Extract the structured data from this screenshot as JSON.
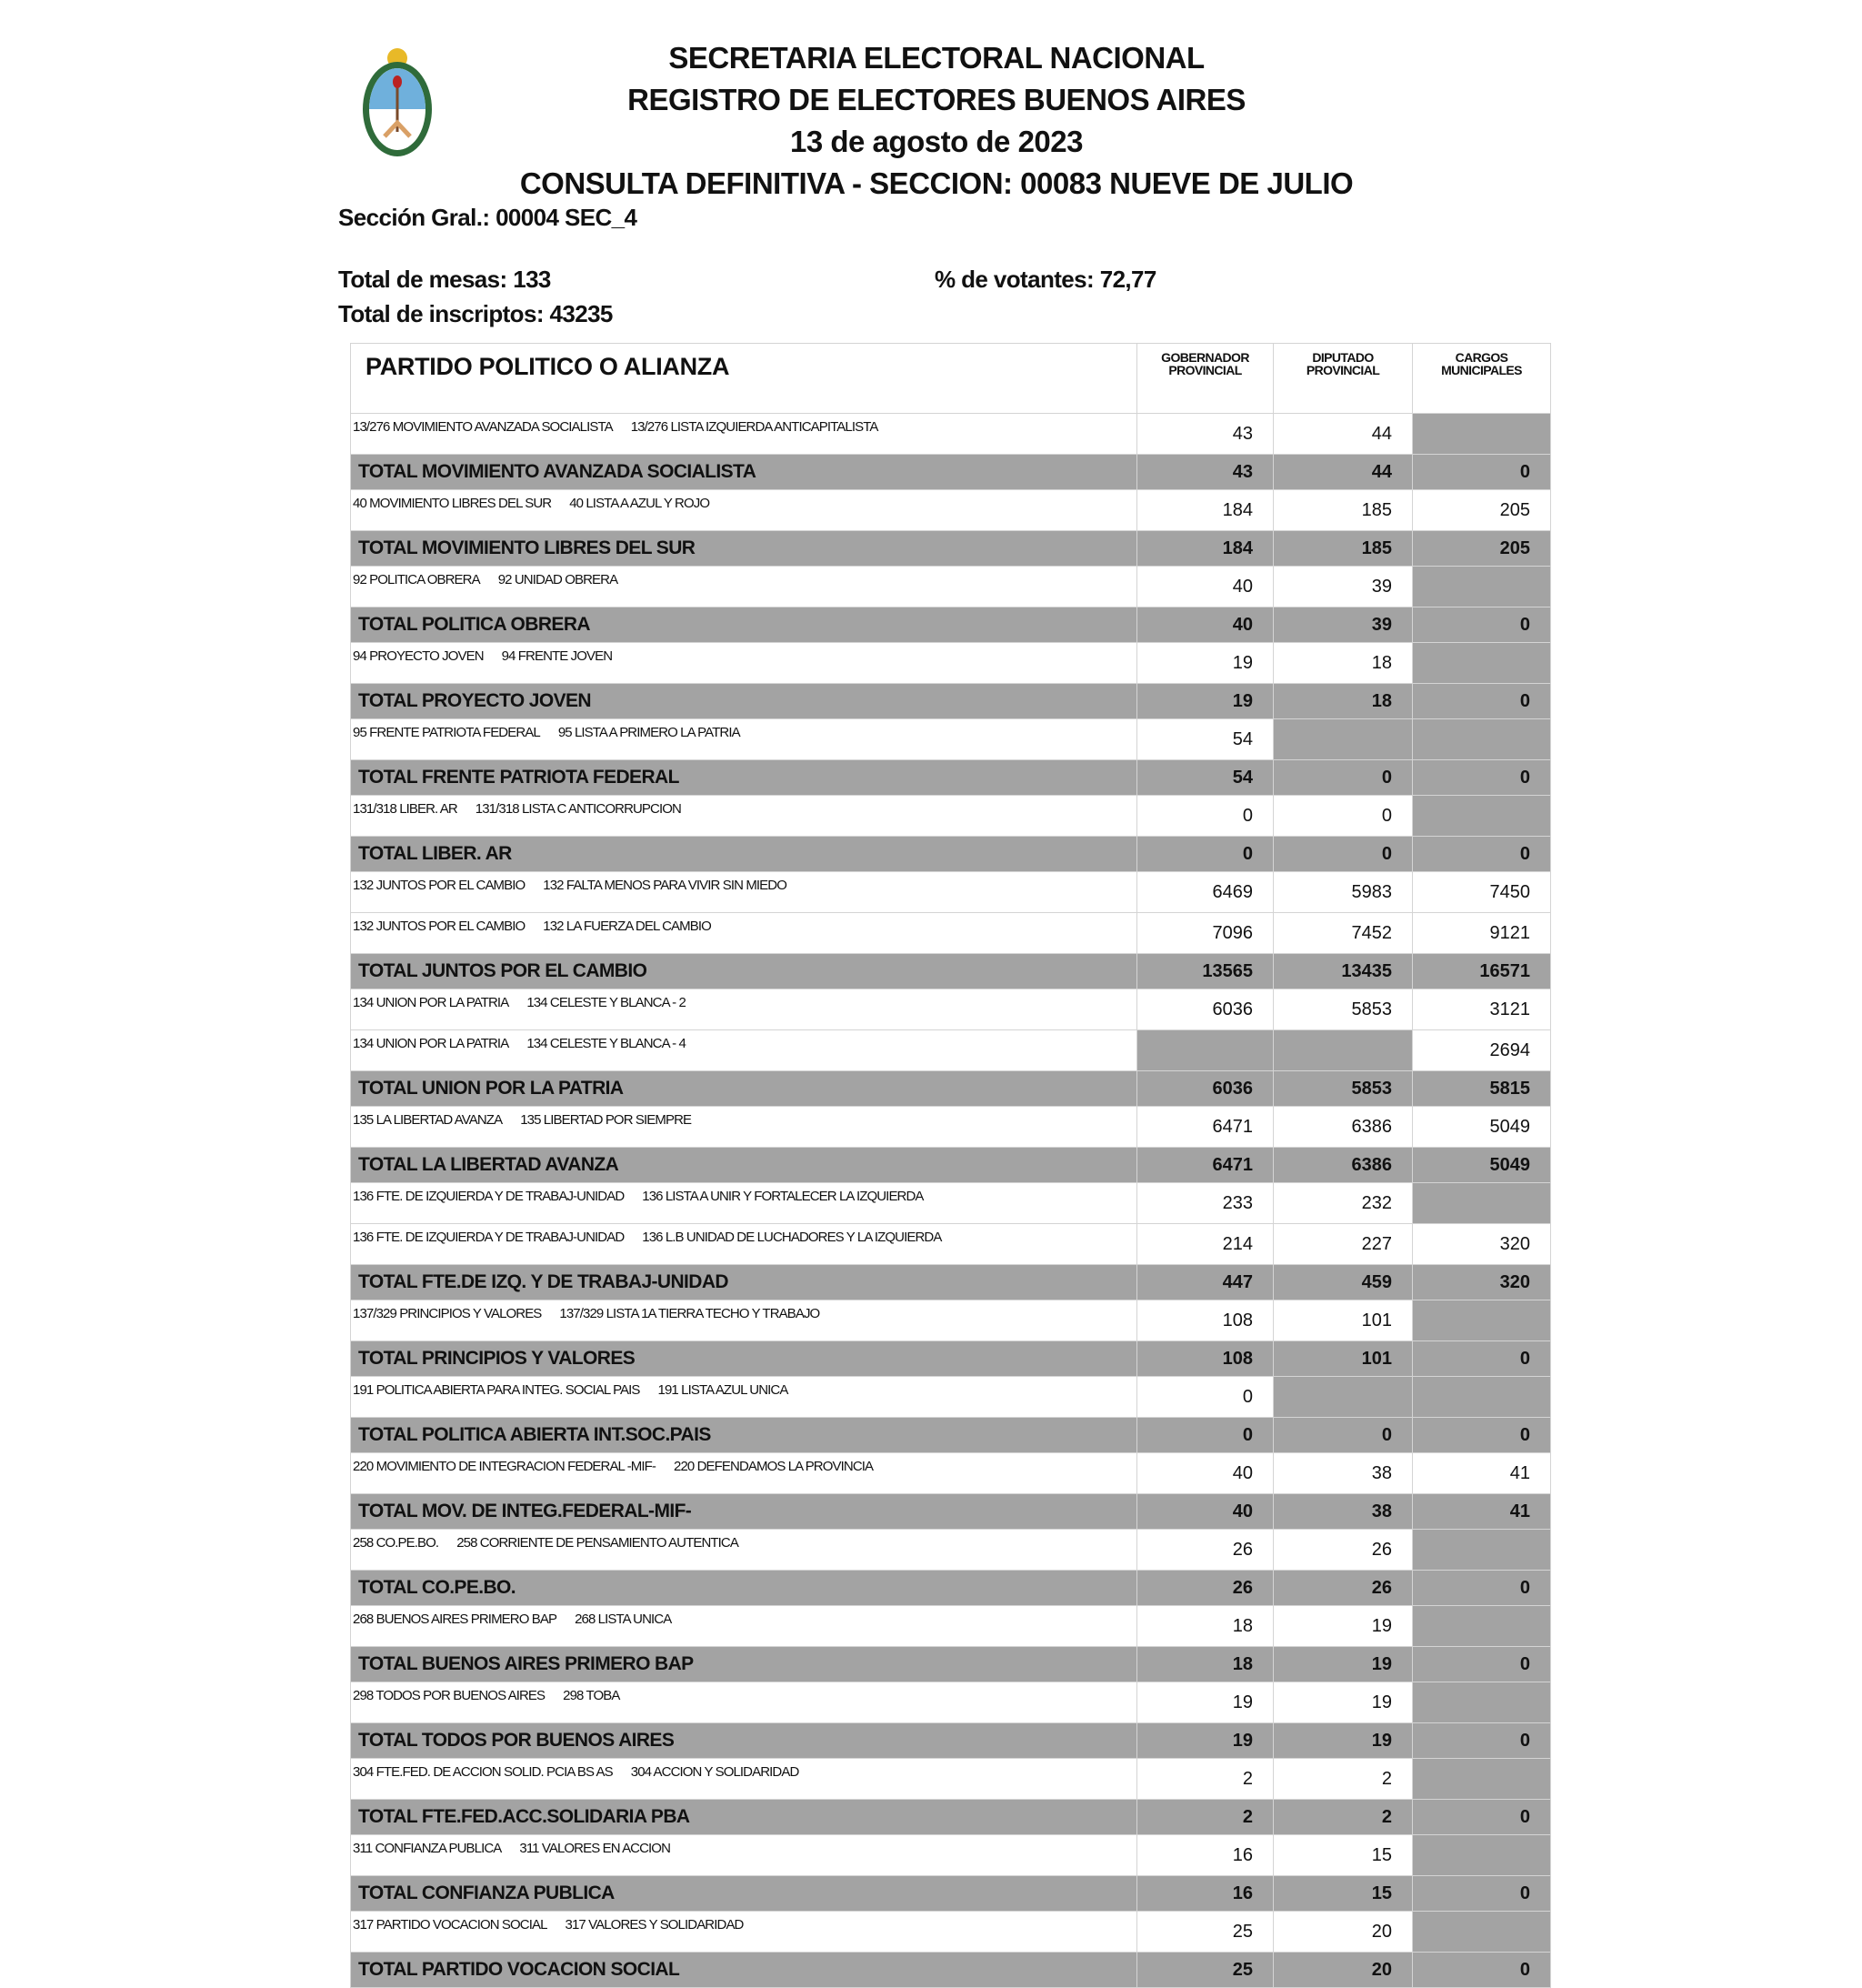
{
  "header": {
    "line1": "SECRETARIA ELECTORAL NACIONAL",
    "line2": "REGISTRO DE ELECTORES BUENOS AIRES",
    "date": "13 de agosto de 2023",
    "line4": "CONSULTA DEFINITIVA - SECCION:  00083  NUEVE DE JULIO",
    "seccion_gral": "Sección Gral.:  00004  SEC_4",
    "total_mesas": "Total de mesas: 133",
    "pct_votantes": "% de votantes: 72,77",
    "total_inscriptos": "Total de inscriptos: 43235",
    "logo": "argentina-coat-of-arms"
  },
  "colors": {
    "shaded": "#a3a3a3",
    "border": "#d4d4d4"
  },
  "table": {
    "columns": {
      "party": "PARTIDO POLITICO O ALIANZA",
      "gob1": "GOBERNADOR",
      "gob2": "PROVINCIAL",
      "dip1": "DIPUTADO",
      "dip2": "PROVINCIAL",
      "mun1": "CARGOS",
      "mun2": "MUNICIPALES"
    },
    "rows": [
      {
        "type": "list",
        "party": "13/276 MOVIMIENTO AVANZADA SOCIALISTA",
        "list": "13/276 LISTA IZQUIERDA ANTICAPITALISTA",
        "values": [
          "43",
          "44",
          null
        ]
      },
      {
        "type": "total",
        "party": "TOTAL MOVIMIENTO AVANZADA SOCIALISTA",
        "values": [
          "43",
          "44",
          "0"
        ]
      },
      {
        "type": "list",
        "party": "40 MOVIMIENTO LIBRES DEL SUR",
        "list": "40 LISTA A AZUL Y ROJO",
        "values": [
          "184",
          "185",
          "205"
        ]
      },
      {
        "type": "total",
        "party": "TOTAL MOVIMIENTO LIBRES DEL SUR",
        "values": [
          "184",
          "185",
          "205"
        ]
      },
      {
        "type": "list",
        "party": "92 POLITICA OBRERA",
        "list": "92 UNIDAD OBRERA",
        "values": [
          "40",
          "39",
          null
        ]
      },
      {
        "type": "total",
        "party": "TOTAL POLITICA OBRERA",
        "values": [
          "40",
          "39",
          "0"
        ]
      },
      {
        "type": "list",
        "party": "94 PROYECTO JOVEN",
        "list": "94 FRENTE JOVEN",
        "values": [
          "19",
          "18",
          null
        ]
      },
      {
        "type": "total",
        "party": "TOTAL PROYECTO JOVEN",
        "values": [
          "19",
          "18",
          "0"
        ]
      },
      {
        "type": "list",
        "party": "95 FRENTE PATRIOTA FEDERAL",
        "list": "95 LISTA A PRIMERO LA PATRIA",
        "values": [
          "54",
          null,
          null
        ]
      },
      {
        "type": "total",
        "party": "TOTAL FRENTE PATRIOTA FEDERAL",
        "values": [
          "54",
          "0",
          "0"
        ]
      },
      {
        "type": "list",
        "party": "131/318 LIBER. AR",
        "list": "131/318 LISTA C ANTICORRUPCION",
        "values": [
          "0",
          "0",
          null
        ]
      },
      {
        "type": "total",
        "party": "TOTAL LIBER. AR",
        "values": [
          "0",
          "0",
          "0"
        ]
      },
      {
        "type": "list",
        "party": "132 JUNTOS POR EL CAMBIO",
        "list": "132 FALTA MENOS PARA VIVIR SIN MIEDO",
        "values": [
          "6469",
          "5983",
          "7450"
        ]
      },
      {
        "type": "list",
        "party": "132 JUNTOS POR EL CAMBIO",
        "list": "132 LA FUERZA DEL CAMBIO",
        "values": [
          "7096",
          "7452",
          "9121"
        ]
      },
      {
        "type": "total",
        "party": "TOTAL JUNTOS POR EL CAMBIO",
        "values": [
          "13565",
          "13435",
          "16571"
        ]
      },
      {
        "type": "list",
        "party": "134 UNION POR LA PATRIA",
        "list": "134 CELESTE Y BLANCA - 2",
        "values": [
          "6036",
          "5853",
          "3121"
        ]
      },
      {
        "type": "list",
        "party": "134 UNION POR LA PATRIA",
        "list": "134 CELESTE Y BLANCA - 4",
        "values": [
          null,
          null,
          "2694"
        ]
      },
      {
        "type": "total",
        "party": "TOTAL UNION POR LA PATRIA",
        "values": [
          "6036",
          "5853",
          "5815"
        ]
      },
      {
        "type": "list",
        "party": "135 LA LIBERTAD AVANZA",
        "list": "135 LIBERTAD POR SIEMPRE",
        "values": [
          "6471",
          "6386",
          "5049"
        ]
      },
      {
        "type": "total",
        "party": "TOTAL LA LIBERTAD AVANZA",
        "values": [
          "6471",
          "6386",
          "5049"
        ]
      },
      {
        "type": "list",
        "party": "136 FTE. DE IZQUIERDA Y DE TRABAJ-UNIDAD",
        "list": "136 LISTA A UNIR Y FORTALECER LA IZQUIERDA",
        "values": [
          "233",
          "232",
          null
        ]
      },
      {
        "type": "list",
        "party": "136 FTE. DE IZQUIERDA Y DE TRABAJ-UNIDAD",
        "list": "136 L.B UNIDAD DE LUCHADORES Y LA IZQUIERDA",
        "values": [
          "214",
          "227",
          "320"
        ]
      },
      {
        "type": "total",
        "party": "TOTAL FTE.DE IZQ. Y DE TRABAJ-UNIDAD",
        "values": [
          "447",
          "459",
          "320"
        ]
      },
      {
        "type": "list",
        "party": "137/329 PRINCIPIOS Y VALORES",
        "list": "137/329 LISTA 1A TIERRA TECHO Y TRABAJO",
        "values": [
          "108",
          "101",
          null
        ]
      },
      {
        "type": "total",
        "party": "TOTAL PRINCIPIOS Y VALORES",
        "values": [
          "108",
          "101",
          "0"
        ]
      },
      {
        "type": "list",
        "party": "191 POLITICA ABIERTA PARA INTEG. SOCIAL PAIS",
        "list": "191 LISTA AZUL UNICA",
        "values": [
          "0",
          null,
          null
        ]
      },
      {
        "type": "total",
        "party": "TOTAL POLITICA ABIERTA INT.SOC.PAIS",
        "values": [
          "0",
          "0",
          "0"
        ]
      },
      {
        "type": "list",
        "party": "220 MOVIMIENTO DE INTEGRACION FEDERAL -MIF-",
        "list": "220 DEFENDAMOS LA PROVINCIA",
        "values": [
          "40",
          "38",
          "41"
        ]
      },
      {
        "type": "total",
        "party": "TOTAL MOV. DE INTEG.FEDERAL-MIF-",
        "values": [
          "40",
          "38",
          "41"
        ]
      },
      {
        "type": "list",
        "party": "258 CO.PE.BO.",
        "list": "258 CORRIENTE DE PENSAMIENTO AUTENTICA",
        "values": [
          "26",
          "26",
          null
        ]
      },
      {
        "type": "total",
        "party": "TOTAL CO.PE.BO.",
        "values": [
          "26",
          "26",
          "0"
        ]
      },
      {
        "type": "list",
        "party": "268 BUENOS AIRES PRIMERO BAP",
        "list": "268 LISTA UNICA",
        "values": [
          "18",
          "19",
          null
        ]
      },
      {
        "type": "total",
        "party": "TOTAL BUENOS AIRES PRIMERO BAP",
        "values": [
          "18",
          "19",
          "0"
        ]
      },
      {
        "type": "list",
        "party": "298 TODOS POR BUENOS AIRES",
        "list": "298 TOBA",
        "values": [
          "19",
          "19",
          null
        ]
      },
      {
        "type": "total",
        "party": "TOTAL TODOS POR BUENOS AIRES",
        "values": [
          "19",
          "19",
          "0"
        ]
      },
      {
        "type": "list",
        "party": "304 FTE.FED. DE ACCION SOLID. PCIA BS AS",
        "list": "304 ACCION Y SOLIDARIDAD",
        "values": [
          "2",
          "2",
          null
        ]
      },
      {
        "type": "total",
        "party": "TOTAL FTE.FED.ACC.SOLIDARIA PBA",
        "values": [
          "2",
          "2",
          "0"
        ]
      },
      {
        "type": "list",
        "party": "311 CONFIANZA PUBLICA",
        "list": "311 VALORES EN ACCION",
        "values": [
          "16",
          "15",
          null
        ]
      },
      {
        "type": "total",
        "party": "TOTAL CONFIANZA PUBLICA",
        "values": [
          "16",
          "15",
          "0"
        ]
      },
      {
        "type": "list",
        "party": "317 PARTIDO VOCACION SOCIAL",
        "list": "317 VALORES Y SOLIDARIDAD",
        "values": [
          "25",
          "20",
          null
        ]
      },
      {
        "type": "total",
        "party": "TOTAL PARTIDO VOCACION SOCIAL",
        "values": [
          "25",
          "20",
          "0"
        ]
      }
    ]
  }
}
